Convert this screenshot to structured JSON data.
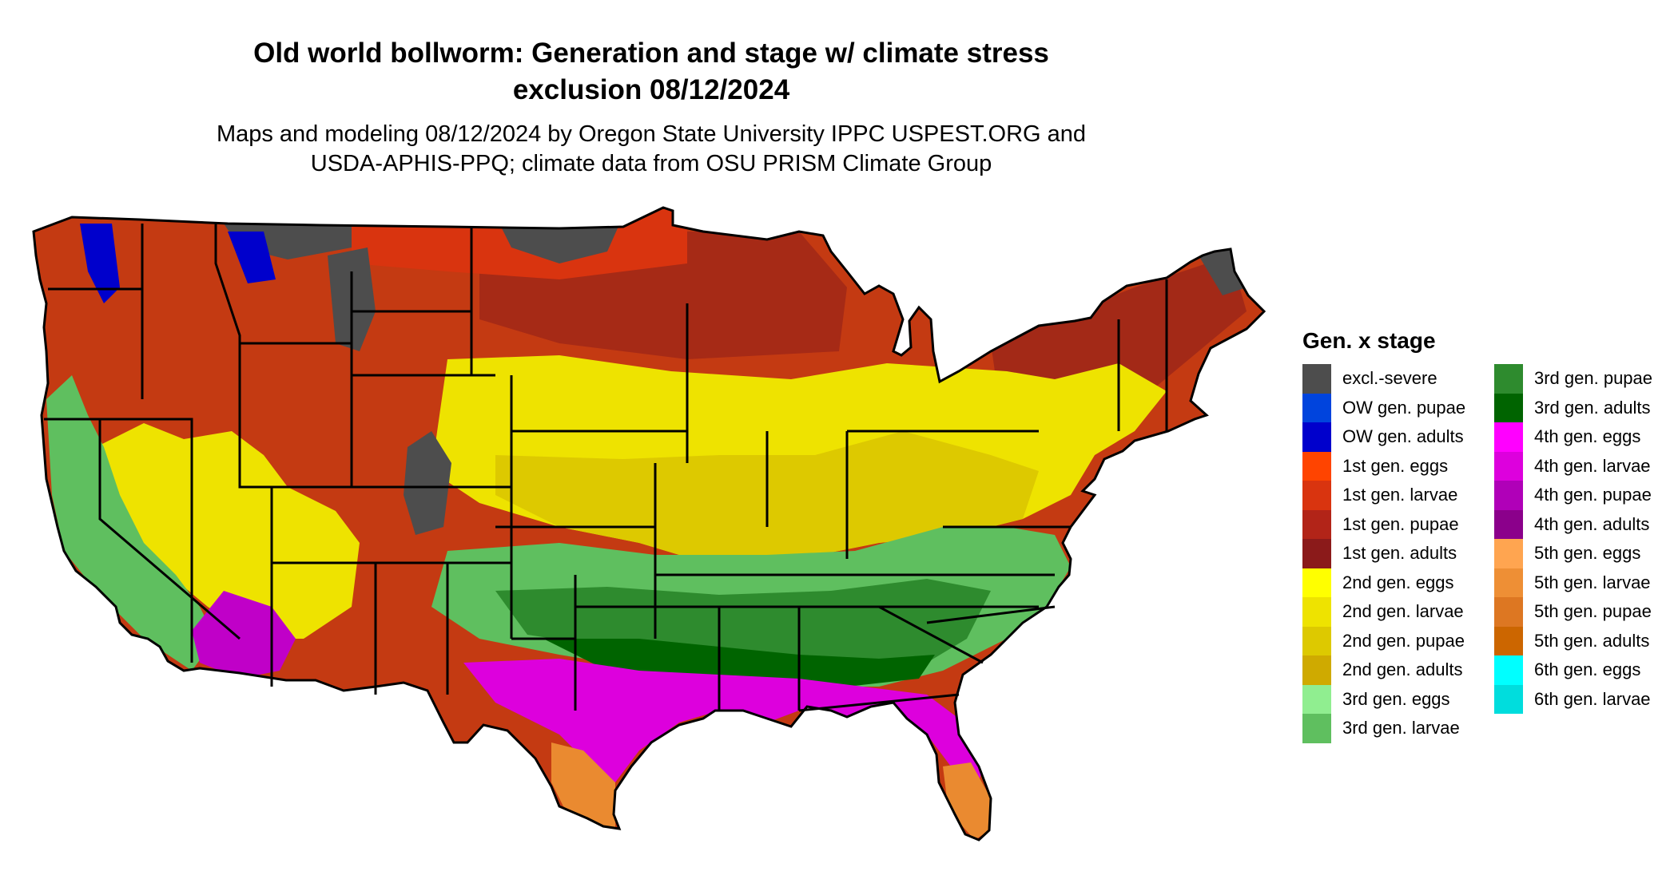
{
  "title": {
    "line1": "Old world bollworm: Generation and stage w/ climate stress",
    "line2": "exclusion 08/12/2024"
  },
  "subtitle": {
    "line1": "Maps and modeling 08/12/2024 by Oregon State University IPPC USPEST.ORG and",
    "line2": "USDA-APHIS-PPQ; climate data from OSU PRISM Climate Group"
  },
  "map": {
    "name": "contiguous-united-states",
    "zone_colors": {
      "north": "#C43A12",
      "north_dark": "#8E1E1A",
      "north_orange": "#D9340F",
      "midwest_yellow": "#EEE300",
      "midwest_dark_yellow": "#DDC900",
      "south_green": "#5FBF5F",
      "south_dark_green": "#2E8B2E",
      "gulf_dark_green": "#006400",
      "gulf_magenta": "#DD00DD",
      "gulf_purple": "#A000A8",
      "texas_florida_orange": "#EA8A30",
      "excluded": "#4D4D4D",
      "ow_blue": "#0000CC"
    },
    "state_line_color": "#000000"
  },
  "legend": {
    "title": "Gen. x stage",
    "columns": [
      [
        {
          "label": "excl.-severe",
          "color": "#4D4D4D"
        },
        {
          "label": "OW gen. pupae",
          "color": "#0044DD"
        },
        {
          "label": "OW gen. adults",
          "color": "#0000CC"
        },
        {
          "label": "1st gen. eggs",
          "color": "#FF4400"
        },
        {
          "label": "1st gen. larvae",
          "color": "#D9340F"
        },
        {
          "label": "1st gen. pupae",
          "color": "#B22418"
        },
        {
          "label": "1st gen. adults",
          "color": "#8B1A1A"
        },
        {
          "label": "2nd gen. eggs",
          "color": "#FFFF00"
        },
        {
          "label": "2nd gen. larvae",
          "color": "#EEE300"
        },
        {
          "label": "2nd gen. pupae",
          "color": "#DDC900"
        },
        {
          "label": "2nd gen. adults",
          "color": "#CFAA00"
        },
        {
          "label": "3rd gen. eggs",
          "color": "#90EE90"
        },
        {
          "label": "3rd gen. larvae",
          "color": "#5FBF5F"
        }
      ],
      [
        {
          "label": "3rd gen. pupae",
          "color": "#2E8B2E"
        },
        {
          "label": "3rd gen. adults",
          "color": "#006400"
        },
        {
          "label": "4th gen. eggs",
          "color": "#FF00FF"
        },
        {
          "label": "4th gen. larvae",
          "color": "#DD00DD"
        },
        {
          "label": "4th gen. pupae",
          "color": "#B000B8"
        },
        {
          "label": "4th gen. adults",
          "color": "#8B008B"
        },
        {
          "label": "5th gen. eggs",
          "color": "#FFA550"
        },
        {
          "label": "5th gen. larvae",
          "color": "#EE8F35"
        },
        {
          "label": "5th gen. pupae",
          "color": "#DD7722"
        },
        {
          "label": "5th gen. adults",
          "color": "#CC6600"
        },
        {
          "label": "6th gen. eggs",
          "color": "#00FFFF"
        },
        {
          "label": "6th gen. larvae",
          "color": "#00DDDD"
        }
      ]
    ]
  }
}
